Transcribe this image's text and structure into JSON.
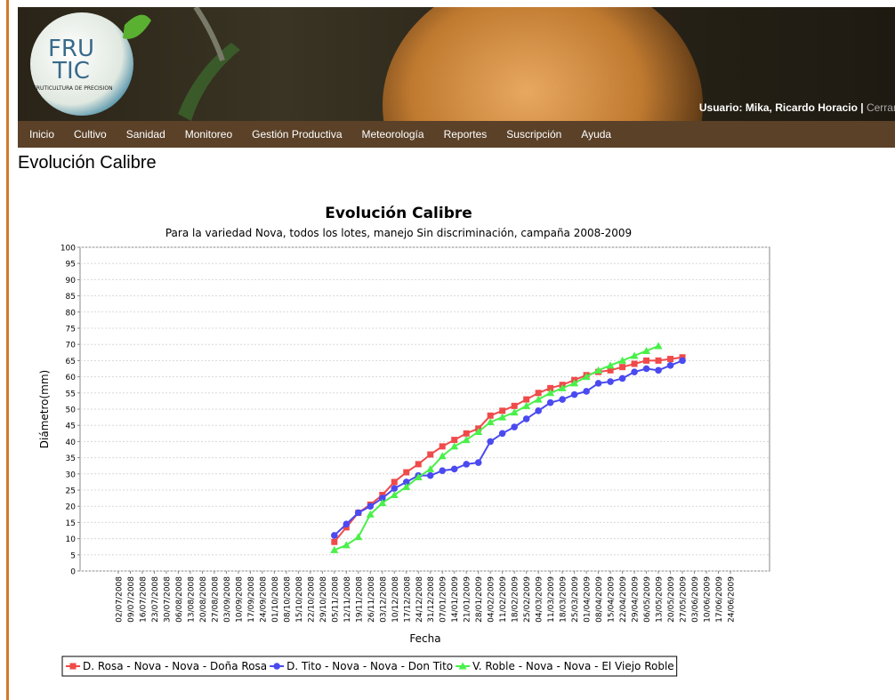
{
  "header": {
    "logo_top": "FRU",
    "logo_bottom": "TIC",
    "logo_caption": "FRUTICULTURA DE PRECISION",
    "user": "Usuario: Mika, Ricardo Horacio",
    "separator": "|",
    "logout": "Cerrar sesión"
  },
  "nav": [
    "Inicio",
    "Cultivo",
    "Sanidad",
    "Monitoreo",
    "Gestión Productiva",
    "Meteorología",
    "Reportes",
    "Suscripción",
    "Ayuda"
  ],
  "page_title": "Evolución Calibre",
  "chart_data": {
    "type": "line",
    "title": "Evolución Calibre",
    "subtitle": "Para la variedad Nova, todos los lotes, manejo Sin discriminación, campaña 2008-2009",
    "x_label": "Fecha",
    "y_label": "Diámetro(mm)",
    "categories": [
      "02/07/2008",
      "09/07/2008",
      "16/07/2008",
      "23/07/2008",
      "30/07/2008",
      "06/08/2008",
      "13/08/2008",
      "20/08/2008",
      "27/08/2008",
      "03/09/2008",
      "10/09/2008",
      "17/09/2008",
      "24/09/2008",
      "01/10/2008",
      "08/10/2008",
      "15/10/2008",
      "22/10/2008",
      "29/10/2008",
      "05/11/2008",
      "12/11/2008",
      "19/11/2008",
      "26/11/2008",
      "03/12/2008",
      "10/12/2008",
      "17/12/2008",
      "24/12/2008",
      "31/12/2008",
      "07/01/2009",
      "14/01/2009",
      "21/01/2009",
      "28/01/2009",
      "04/02/2009",
      "11/02/2009",
      "18/02/2009",
      "25/02/2009",
      "04/03/2009",
      "11/03/2009",
      "18/03/2009",
      "25/03/2009",
      "01/04/2009",
      "08/04/2009",
      "15/04/2009",
      "22/04/2009",
      "29/04/2009",
      "06/05/2009",
      "13/05/2009",
      "20/05/2009",
      "27/05/2009",
      "03/06/2009",
      "10/06/2009",
      "17/06/2009",
      "24/06/2009"
    ],
    "series": [
      {
        "name": "D. Rosa - Nova - Nova - Doña Rosa",
        "color": "#f04a4a",
        "marker": "square",
        "values": [
          null,
          null,
          null,
          null,
          null,
          null,
          null,
          null,
          null,
          null,
          null,
          null,
          null,
          null,
          null,
          null,
          null,
          null,
          9,
          13.5,
          18,
          20.5,
          23.5,
          27.5,
          30.5,
          33,
          36,
          38.5,
          40.5,
          42.5,
          44,
          48,
          49.5,
          51,
          53,
          55,
          56.5,
          57.5,
          59,
          60.5,
          61.5,
          62,
          63,
          64,
          65,
          65,
          65.5,
          66,
          null,
          null,
          null,
          null
        ]
      },
      {
        "name": "D. Tito - Nova - Nova - Don Tito",
        "color": "#4a4af0",
        "marker": "circle",
        "values": [
          null,
          null,
          null,
          null,
          null,
          null,
          null,
          null,
          null,
          null,
          null,
          null,
          null,
          null,
          null,
          null,
          null,
          null,
          11,
          14.5,
          18,
          20,
          22.5,
          25.5,
          27.5,
          29.5,
          29.5,
          31,
          31.5,
          33,
          33.5,
          40,
          42.5,
          44.5,
          47,
          49.5,
          52,
          53,
          54.5,
          55.5,
          58,
          58.5,
          59.5,
          61.5,
          62.5,
          62,
          63.5,
          65,
          null,
          null,
          null,
          null
        ]
      },
      {
        "name": "V. Roble - Nova - Nova - El Viejo Roble",
        "color": "#4af04a",
        "marker": "triangle",
        "values": [
          null,
          null,
          null,
          null,
          null,
          null,
          null,
          null,
          null,
          null,
          null,
          null,
          null,
          null,
          null,
          null,
          null,
          null,
          6.5,
          8,
          10.5,
          17.5,
          21,
          23.5,
          26,
          29,
          31.5,
          35.5,
          38.5,
          40.5,
          43,
          46,
          47.5,
          49,
          51,
          53,
          55,
          56.5,
          58,
          60,
          62,
          63.5,
          65,
          66.5,
          68,
          69.5,
          null,
          null,
          null,
          null,
          null,
          null
        ]
      }
    ],
    "ylim": [
      0,
      100
    ],
    "yticks": [
      0,
      5,
      10,
      15,
      20,
      25,
      30,
      35,
      40,
      45,
      50,
      55,
      60,
      65,
      70,
      75,
      80,
      85,
      90,
      95,
      100
    ],
    "grid": true
  }
}
